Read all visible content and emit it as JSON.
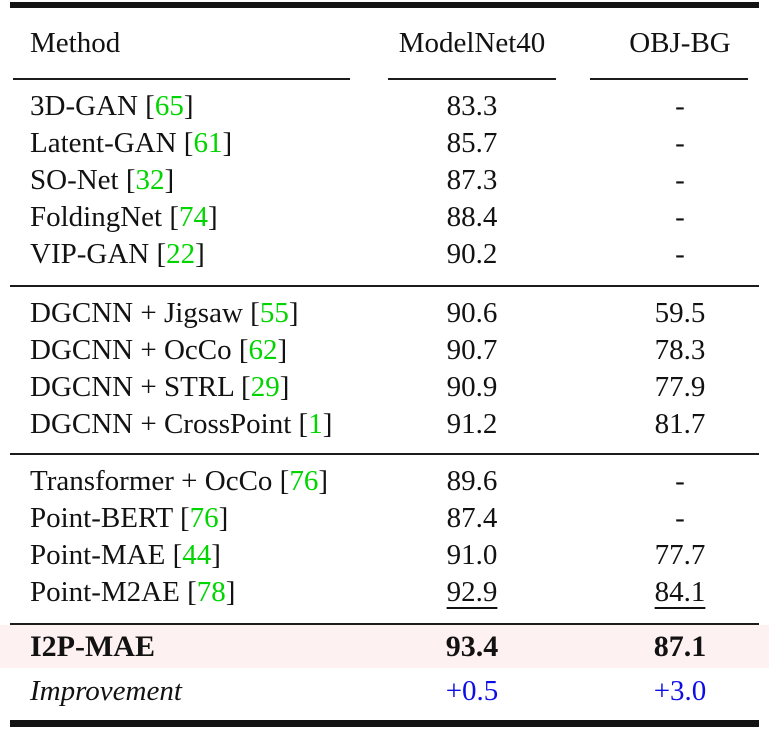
{
  "table": {
    "columns": [
      "Method",
      "ModelNet40",
      "OBJ-BG"
    ],
    "groups": [
      {
        "rows": [
          {
            "method": "3D-GAN",
            "cite": "65",
            "modelnet40": "83.3",
            "objbg": "-"
          },
          {
            "method": "Latent-GAN",
            "cite": "61",
            "modelnet40": "85.7",
            "objbg": "-"
          },
          {
            "method": "SO-Net",
            "cite": "32",
            "modelnet40": "87.3",
            "objbg": "-"
          },
          {
            "method": "FoldingNet",
            "cite": "74",
            "modelnet40": "88.4",
            "objbg": "-"
          },
          {
            "method": "VIP-GAN",
            "cite": "22",
            "modelnet40": "90.2",
            "objbg": "-"
          }
        ]
      },
      {
        "rows": [
          {
            "method": "DGCNN + Jigsaw",
            "cite": "55",
            "modelnet40": "90.6",
            "objbg": "59.5"
          },
          {
            "method": "DGCNN + OcCo",
            "cite": "62",
            "modelnet40": "90.7",
            "objbg": "78.3"
          },
          {
            "method": "DGCNN + STRL",
            "cite": "29",
            "modelnet40": "90.9",
            "objbg": "77.9"
          },
          {
            "method": "DGCNN + CrossPoint",
            "cite": "1",
            "modelnet40": "91.2",
            "objbg": "81.7"
          }
        ]
      },
      {
        "rows": [
          {
            "method": "Transformer + OcCo",
            "cite": "76",
            "modelnet40": "89.6",
            "objbg": "-"
          },
          {
            "method": "Point-BERT",
            "cite": "76",
            "modelnet40": "87.4",
            "objbg": "-"
          },
          {
            "method": "Point-MAE",
            "cite": "44",
            "modelnet40": "91.0",
            "objbg": "77.7"
          },
          {
            "method": "Point-M2AE",
            "cite": "78",
            "modelnet40": "92.9",
            "objbg": "84.1",
            "underline_modelnet40": true,
            "underline_objbg": true
          }
        ]
      }
    ],
    "highlight": {
      "method": "I2P-MAE",
      "modelnet40": "93.4",
      "objbg": "87.1"
    },
    "improvement": {
      "label": "Improvement",
      "modelnet40": "+0.5",
      "objbg": "+3.0"
    },
    "colors": {
      "citation_green": "#00D500",
      "improvement_blue": "#0D0DE6",
      "highlight_bg": "#FDF1F1"
    }
  }
}
